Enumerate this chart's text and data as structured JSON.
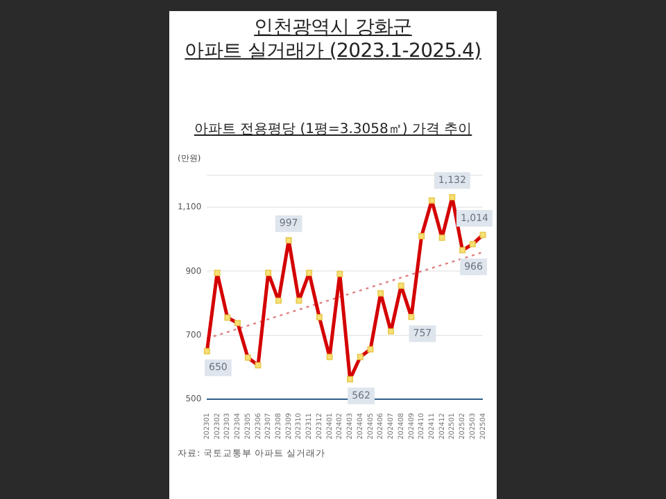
{
  "chart_data": {
    "type": "line",
    "title": "인천광역시 강화군\n아파트 실거래가 (2023.1-2025.4)",
    "subtitle": "아파트 전용평당 (1평=3.3058㎡) 가격 추이",
    "ylabel": "(만원)",
    "categories": [
      "202301",
      "202302",
      "202303",
      "202304",
      "202305",
      "202306",
      "202307",
      "202308",
      "202309",
      "202310",
      "202311",
      "202312",
      "202401",
      "202402",
      "202403",
      "202404",
      "202405",
      "202406",
      "202407",
      "202408",
      "202409",
      "202410",
      "202411",
      "202412",
      "202501",
      "202502",
      "202503",
      "202504"
    ],
    "series": [
      {
        "color": "#d40000",
        "marker": "square",
        "line_style": "solid",
        "values": [
          650,
          895,
          755,
          738,
          630,
          606,
          895,
          808,
          997,
          808,
          895,
          756,
          632,
          892,
          562,
          632,
          656,
          831,
          712,
          855,
          757,
          1010,
          1122,
          1005,
          1132,
          966,
          985,
          1014
        ],
        "value_labels": [
          "650",
          null,
          null,
          null,
          null,
          null,
          null,
          null,
          "997",
          null,
          null,
          null,
          null,
          null,
          "562",
          null,
          null,
          null,
          null,
          null,
          "757",
          null,
          null,
          null,
          "1,132",
          "966",
          null,
          "1,014"
        ]
      },
      {
        "type": "line",
        "color": "#e08080",
        "marker": "none",
        "line_style": "dotted",
        "values": [
          690,
          null,
          null,
          null,
          null,
          null,
          null,
          null,
          null,
          null,
          null,
          null,
          null,
          null,
          null,
          null,
          null,
          null,
          null,
          null,
          null,
          null,
          null,
          null,
          null,
          null,
          null,
          960
        ]
      }
    ],
    "ylim": [
      500,
      1200
    ],
    "yticks": [
      500,
      700,
      900,
      {
        "value": 1100,
        "label": "1,100"
      },
      {
        "value": 1200,
        "label": null
      }
    ],
    "grid": "y",
    "legend": false,
    "annotations": [
      "자료: 국토교통부 아파트 실거래가"
    ]
  }
}
